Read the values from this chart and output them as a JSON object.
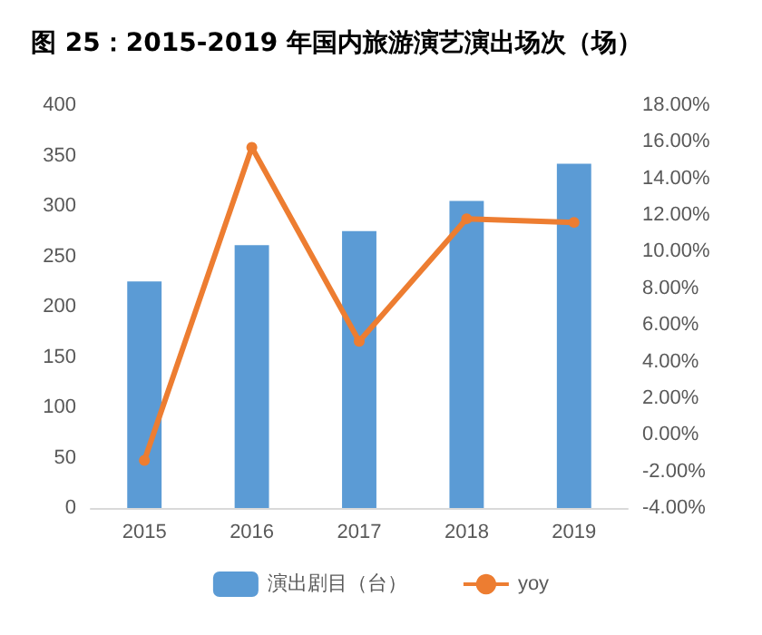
{
  "chart_data": {
    "type": "bar",
    "title": "图 25：2015-2019 年国内旅游演艺演出场次（场）",
    "categories": [
      "2015",
      "2016",
      "2017",
      "2018",
      "2019"
    ],
    "series": [
      {
        "name": "演出剧目（台）",
        "color": "#5b9bd5",
        "values": [
          225,
          261,
          275,
          305,
          342
        ]
      },
      {
        "name": "yoy",
        "type": "line",
        "axis": "y2",
        "color": "#ed7d31",
        "marker": "circle",
        "values": [
          -1.4,
          15.7,
          5.1,
          11.8,
          11.6
        ]
      }
    ],
    "ylim": [
      0,
      400
    ],
    "yticks": [
      0,
      50,
      100,
      150,
      200,
      250,
      300,
      350,
      400
    ],
    "y2lim": [
      -4,
      18
    ],
    "y2ticks": [
      {
        "value": -4,
        "label": "-4.00%"
      },
      {
        "value": -2,
        "label": "-2.00%"
      },
      {
        "value": 0,
        "label": "0.00%"
      },
      {
        "value": 2,
        "label": "2.00%"
      },
      {
        "value": 4,
        "label": "4.00%"
      },
      {
        "value": 6,
        "label": "6.00%"
      },
      {
        "value": 8,
        "label": "8.00%"
      },
      {
        "value": 10,
        "label": "10.00%"
      },
      {
        "value": 12,
        "label": "12.00%"
      },
      {
        "value": 14,
        "label": "14.00%"
      },
      {
        "value": 16,
        "label": "16.00%"
      },
      {
        "value": 18,
        "label": "18.00%"
      }
    ],
    "grid": false,
    "legend": "bottom"
  }
}
